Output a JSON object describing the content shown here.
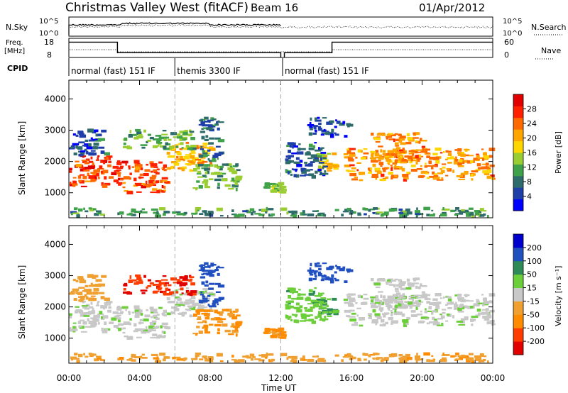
{
  "chart_data": {
    "type": "heatmap",
    "title": "Christmas Valley West (fitACF)",
    "beam": "Beam 16",
    "date": "01/Apr/2012",
    "xlabel": "Time UT",
    "x_ticks": [
      "00:00",
      "04:00",
      "08:00",
      "12:00",
      "16:00",
      "20:00",
      "00:00"
    ],
    "xlim_hours": [
      0,
      24
    ],
    "noise": {
      "left_label": "N.Sky",
      "right_label": "N.Search",
      "left_ticks": [
        "10^5",
        "10^0"
      ],
      "right_ticks": [
        "10^5",
        "10^0"
      ]
    },
    "freq": {
      "left_label_line1": "Freq.",
      "left_label_line2": "[MHz]",
      "left_ticks": [
        18,
        8
      ],
      "right_label": "Nave",
      "right_ticks": [
        60,
        0
      ],
      "segments": [
        {
          "start": 0,
          "end": 2.75,
          "value": 16
        },
        {
          "start": 2.75,
          "end": 12.0,
          "value": 10.5
        },
        {
          "start": 12.2,
          "end": 14.9,
          "value": 10.5
        },
        {
          "start": 14.9,
          "end": 24,
          "value": 16
        }
      ]
    },
    "cpid": {
      "label": "CPID",
      "segments": [
        {
          "start": 0,
          "end": 6,
          "label": "normal (fast) 151 IF"
        },
        {
          "start": 6,
          "end": 12.1,
          "label": "themis 3300 IF"
        },
        {
          "start": 12.1,
          "end": 24,
          "label": "normal (fast) 151 IF"
        }
      ]
    },
    "panels": [
      {
        "parameter": "Power",
        "unit": "[dB]",
        "ylabel": "Slant Range [km]",
        "y_ticks": [
          1000,
          2000,
          3000,
          4000
        ],
        "ylim": [
          200,
          4600
        ],
        "colorbar_labels": [
          "4",
          "8",
          "12",
          "16",
          "20",
          "24",
          "28"
        ],
        "colorbar_colors": [
          "#0000ff",
          "#1e3fa8",
          "#2e6b6b",
          "#3fa24a",
          "#9acd32",
          "#ffd700",
          "#ffa500",
          "#ff6a00",
          "#ff2000",
          "#e00000"
        ]
      },
      {
        "parameter": "Velocity",
        "unit": "[m s⁻¹]",
        "ylabel": "Slant Range [km]",
        "y_ticks": [
          1000,
          2000,
          3000,
          4000
        ],
        "ylim": [
          200,
          4600
        ],
        "colorbar_labels": [
          "-200",
          "-100",
          "-50",
          "-15",
          "15",
          "50",
          "100",
          "200"
        ],
        "colorbar_colors": [
          "#e00000",
          "#ff3c00",
          "#ff8c00",
          "#f0a030",
          "#c8c8c8",
          "#6ccf3a",
          "#2e8b57",
          "#2050c0",
          "#0000cc"
        ]
      }
    ],
    "echo_regions": [
      {
        "t0": 0.0,
        "t1": 3.0,
        "r0": 1200,
        "r1": 2200,
        "power": 26,
        "vel": 5
      },
      {
        "t0": 3.0,
        "t1": 5.5,
        "r0": 1000,
        "r1": 2000,
        "power": 25,
        "vel": 5
      },
      {
        "t0": 5.5,
        "t1": 8.0,
        "r0": 1700,
        "r1": 2600,
        "power": 20,
        "vel": 5
      },
      {
        "t0": 7.0,
        "t1": 9.5,
        "r0": 1100,
        "r1": 1900,
        "power": 12,
        "vel": -60
      },
      {
        "t0": 3.0,
        "t1": 7.0,
        "r0": 2400,
        "r1": 3000,
        "power": 12,
        "vel": -200
      },
      {
        "t0": 7.3,
        "t1": 8.5,
        "r0": 2000,
        "r1": 3400,
        "power": 8,
        "vel": 150
      },
      {
        "t0": 0.0,
        "t1": 2.0,
        "r0": 2200,
        "r1": 3000,
        "power": 6,
        "vel": -30
      },
      {
        "t0": 11.0,
        "t1": 12.0,
        "r0": 1000,
        "r1": 1300,
        "power": 14,
        "vel": -60
      },
      {
        "t0": 14.0,
        "t1": 15.0,
        "r0": 1700,
        "r1": 2300,
        "power": 18,
        "vel": 60
      },
      {
        "t0": 12.2,
        "t1": 14.5,
        "r0": 1500,
        "r1": 2600,
        "power": 6,
        "vel": 40
      },
      {
        "t0": 15.5,
        "t1": 24.0,
        "r0": 1400,
        "r1": 2400,
        "power": 22,
        "vel": 5
      },
      {
        "t0": 17.0,
        "t1": 20.0,
        "r0": 2000,
        "r1": 2900,
        "power": 22,
        "vel": 5
      },
      {
        "t0": 13.5,
        "t1": 16.0,
        "r0": 2800,
        "r1": 3400,
        "power": 5,
        "vel": 150
      },
      {
        "t0": 0.0,
        "t1": 24.0,
        "r0": 250,
        "r1": 500,
        "power": 10,
        "vel": -40
      }
    ]
  }
}
